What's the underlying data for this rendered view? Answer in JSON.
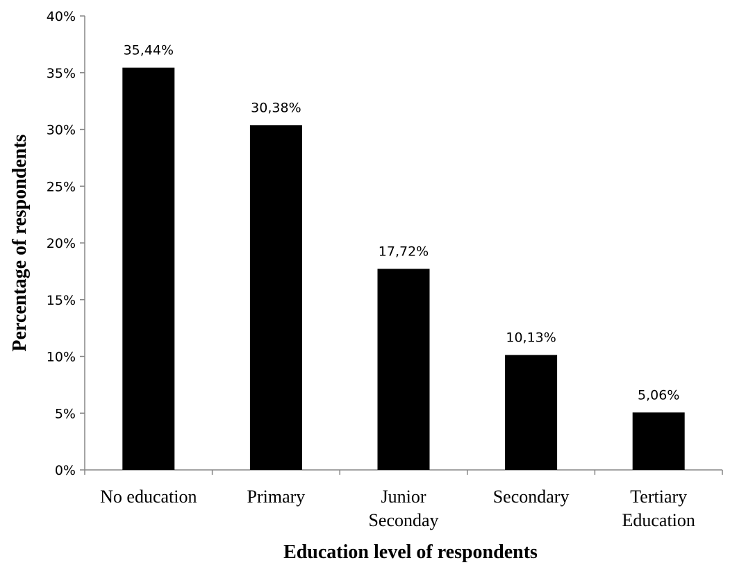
{
  "chart_data": {
    "type": "bar",
    "title": "",
    "xlabel": "Education level of respondents",
    "ylabel": "Percentage of respondents",
    "categories": [
      [
        "No education"
      ],
      [
        "Primary"
      ],
      [
        "Junior",
        "Seconday"
      ],
      [
        "Secondary"
      ],
      [
        "Tertiary",
        "Education"
      ]
    ],
    "values": [
      35.44,
      30.38,
      17.72,
      10.13,
      5.06
    ],
    "data_labels": [
      "35,44%",
      "30,38%",
      "17,72%",
      "10,13%",
      "5,06%"
    ],
    "ylim": [
      0,
      40
    ],
    "y_ticks": [
      {
        "value": 0,
        "label": "0%"
      },
      {
        "value": 5,
        "label": "5%"
      },
      {
        "value": 10,
        "label": "10%"
      },
      {
        "value": 15,
        "label": "15%"
      },
      {
        "value": 20,
        "label": "20%"
      },
      {
        "value": 25,
        "label": "25%"
      },
      {
        "value": 30,
        "label": "30%"
      },
      {
        "value": 35,
        "label": "35%"
      },
      {
        "value": 40,
        "label": "40%"
      }
    ],
    "grid": false,
    "legend": "none",
    "bar_color": "#000000",
    "axis_color": "#868686"
  }
}
